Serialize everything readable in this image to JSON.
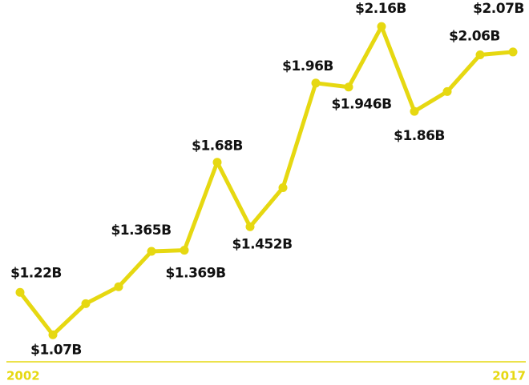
{
  "chart_data": {
    "type": "line",
    "categories": [
      "2002",
      null,
      null,
      null,
      null,
      null,
      null,
      null,
      null,
      null,
      null,
      null,
      null,
      null,
      null,
      "2017"
    ],
    "values": [
      1.22,
      1.07,
      1.18,
      1.24,
      1.365,
      1.369,
      1.68,
      1.452,
      1.59,
      1.96,
      1.946,
      2.16,
      1.86,
      1.93,
      2.06,
      2.07
    ],
    "value_labels": [
      "$1.22B",
      "$1.07B",
      null,
      null,
      "$1.365B",
      "$1.369B",
      "$1.68B",
      "$1.452B",
      null,
      "$1.96B",
      "$1.946B",
      "$2.16B",
      "$1.86B",
      null,
      "$2.06B",
      "$2.07B"
    ],
    "color": "#e6d811",
    "ylim": [
      1.0,
      2.2
    ]
  }
}
